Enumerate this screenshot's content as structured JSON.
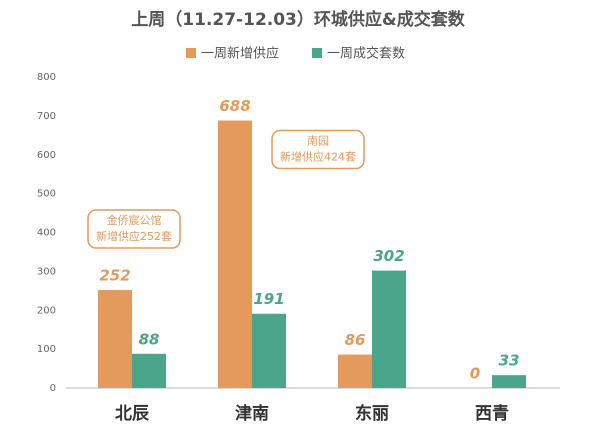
{
  "chart_data": {
    "type": "bar",
    "title": "上周（11.27-12.03）环城供应&成交套数",
    "categories": [
      "北辰",
      "津南",
      "东丽",
      "西青"
    ],
    "series": [
      {
        "name": "一周新增供应",
        "color": "#e39a5c",
        "values": [
          252,
          688,
          86,
          0
        ]
      },
      {
        "name": "一周成交套数",
        "color": "#4aa58a",
        "values": [
          88,
          191,
          302,
          33
        ]
      }
    ],
    "ylim": [
      0,
      800
    ],
    "yticks": [
      0,
      100,
      200,
      300,
      400,
      500,
      600,
      700,
      800
    ],
    "grid": false,
    "legend": "top",
    "annotations": [
      {
        "category": 0,
        "lines": [
          "金侨宸公馆",
          "新增供应252套"
        ]
      },
      {
        "category": 1,
        "lines": [
          "南园",
          "新增供应424套"
        ]
      }
    ]
  }
}
